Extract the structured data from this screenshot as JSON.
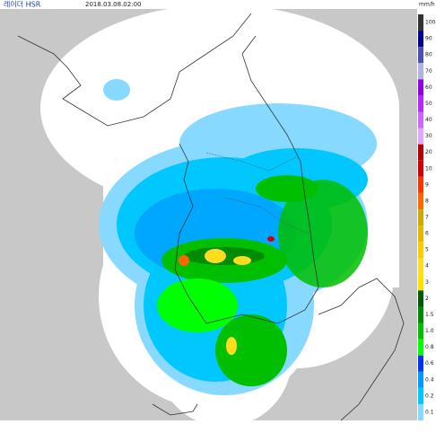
{
  "header": {
    "title": "레이더 HSR",
    "timestamp": "2018.03.08.02:00"
  },
  "legend": {
    "unit": "mm/h",
    "entries": [
      {
        "label": "100",
        "color": "#333333"
      },
      {
        "label": "90",
        "color": "#000390"
      },
      {
        "label": "80",
        "color": "#4c4eb1"
      },
      {
        "label": "70",
        "color": "#b3b4de"
      },
      {
        "label": "60",
        "color": "#9300e4"
      },
      {
        "label": "50",
        "color": "#b329ff"
      },
      {
        "label": "40",
        "color": "#c969ff"
      },
      {
        "label": "30",
        "color": "#e0a9ff"
      },
      {
        "label": "20",
        "color": "#b40000"
      },
      {
        "label": "10",
        "color": "#d20000"
      },
      {
        "label": "9",
        "color": "#ff3200"
      },
      {
        "label": "8",
        "color": "#ff6600"
      },
      {
        "label": "7",
        "color": "#ccaa00"
      },
      {
        "label": "6",
        "color": "#e0b900"
      },
      {
        "label": "5",
        "color": "#f9cd00"
      },
      {
        "label": "4",
        "color": "#ffdc1f"
      },
      {
        "label": "3",
        "color": "#ffe100"
      },
      {
        "label": "2",
        "color": "#005a00"
      },
      {
        "label": "1.5",
        "color": "#008c00"
      },
      {
        "label": "1.0",
        "color": "#00be00"
      },
      {
        "label": "0.8",
        "color": "#00ff00"
      },
      {
        "label": "0.6",
        "color": "#0033f5"
      },
      {
        "label": "0.4",
        "color": "#0099ff"
      },
      {
        "label": "0.2",
        "color": "#00c8ff"
      },
      {
        "label": "0.1",
        "color": "#87d9ff"
      }
    ]
  }
}
